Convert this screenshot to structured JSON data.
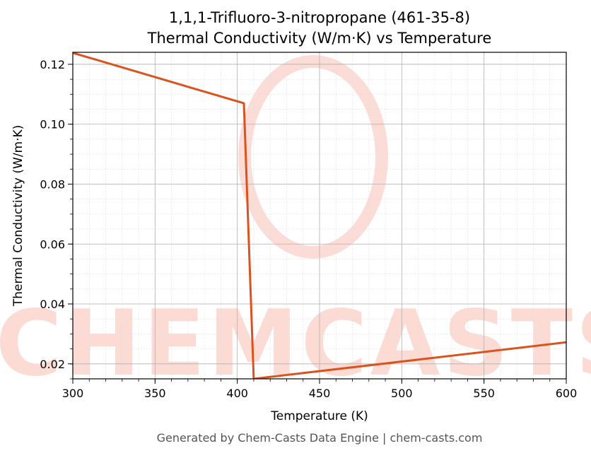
{
  "chart_data": {
    "type": "line",
    "title_line1": "1,1,1-Trifluoro-3-nitropropane (461-35-8)",
    "title_line2": "Thermal Conductivity (W/m·K) vs Temperature",
    "xlabel": "Temperature (K)",
    "ylabel": "Thermal Conductivity (W/m·K)",
    "xlim": [
      300,
      600
    ],
    "ylim": [
      0.015,
      0.124
    ],
    "xticks": [
      300,
      350,
      400,
      450,
      500,
      550,
      600
    ],
    "xtick_labels": [
      "300",
      "350",
      "400",
      "450",
      "500",
      "550",
      "600"
    ],
    "yticks": [
      0.02,
      0.04,
      0.06,
      0.08,
      0.1,
      0.12
    ],
    "ytick_labels": [
      "0.02",
      "0.04",
      "0.06",
      "0.08",
      "0.10",
      "0.12"
    ],
    "grid": true,
    "series": [
      {
        "color": "#d9531e",
        "x": [
          300,
          404,
          410,
          600
        ],
        "y": [
          0.1238,
          0.107,
          0.015,
          0.0272
        ]
      }
    ]
  },
  "watermark": {
    "text": "CHEMCASTS",
    "color": "#fbd0c8"
  },
  "footer": "Generated by Chem-Casts Data Engine | chem-casts.com"
}
